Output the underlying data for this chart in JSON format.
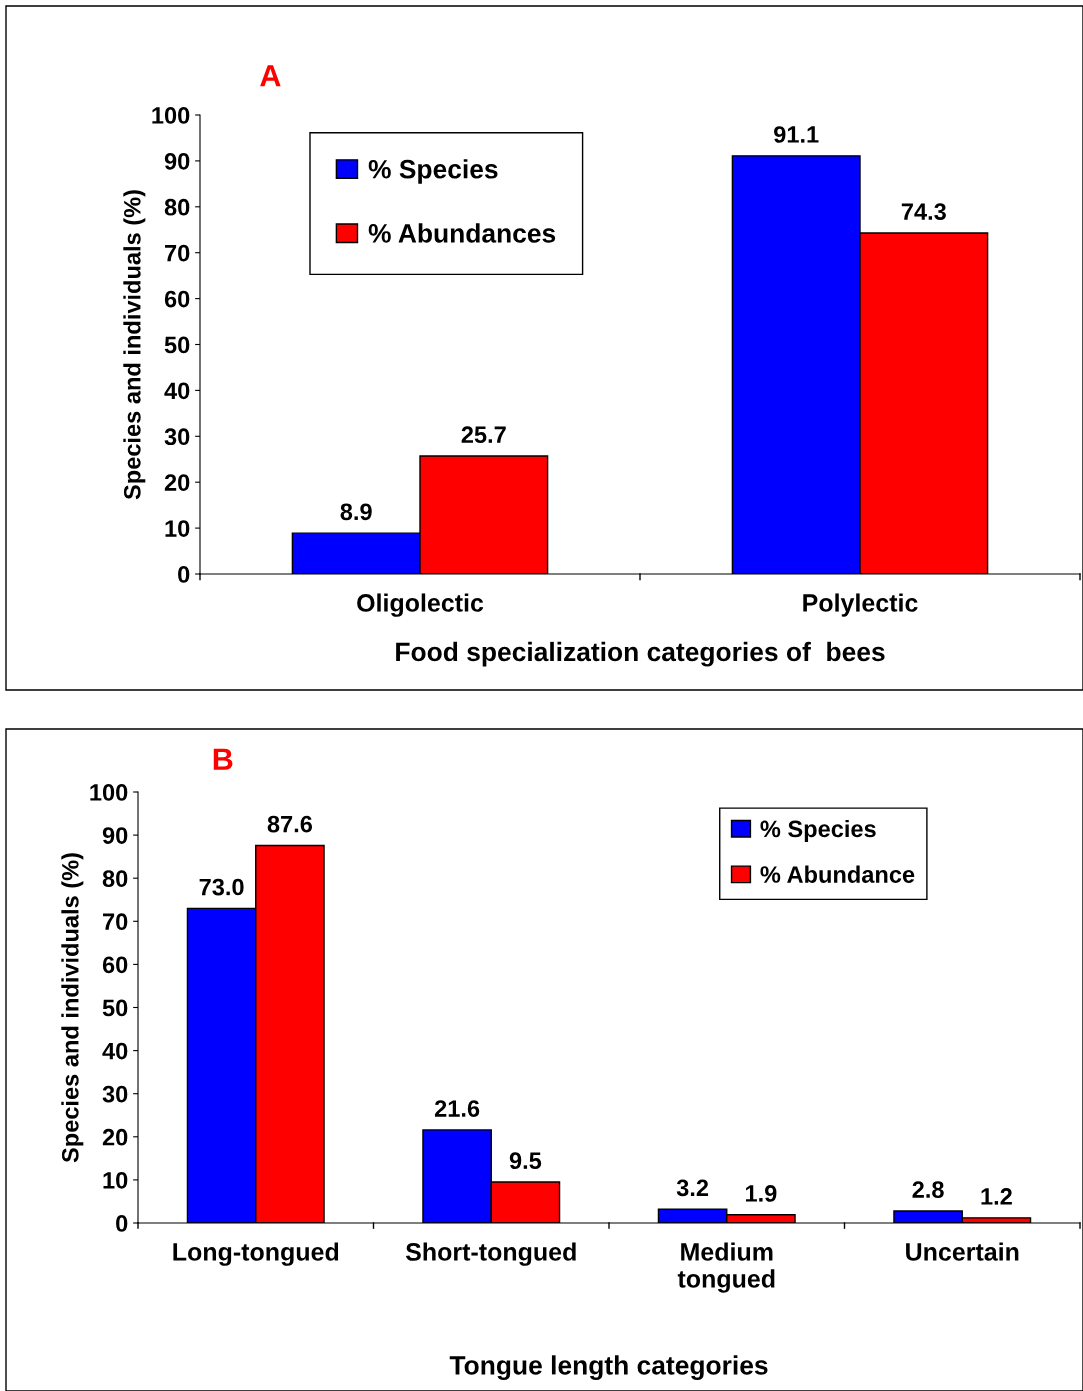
{
  "chart_data": [
    {
      "type": "bar",
      "title": "A",
      "xlabel": "Food specialization categories of  bees",
      "ylabel": "Species and individuals (%)",
      "categories": [
        "Oligolectic",
        "Polylectic"
      ],
      "series": [
        {
          "name": "% Species",
          "color": "#0000ff",
          "values": [
            8.9,
            91.1
          ]
        },
        {
          "name": "% Abundances",
          "color": "#ff0000",
          "values": [
            25.7,
            74.3
          ]
        }
      ],
      "ylim": [
        0,
        100
      ],
      "yticks": [
        0,
        10,
        20,
        30,
        40,
        50,
        60,
        70,
        80,
        90,
        100
      ],
      "data_labels": true,
      "legend": "top left",
      "grid": false
    },
    {
      "type": "bar",
      "title": "B",
      "xlabel": "Tongue length categories",
      "ylabel": "Species and individuals (%)",
      "categories": [
        "Long-tongued",
        "Short-tongued",
        "Medium\ntongued",
        "Uncertain"
      ],
      "series": [
        {
          "name": "% Species",
          "color": "#0000ff",
          "values": [
            73.0,
            21.6,
            3.2,
            2.8
          ],
          "value_labels": [
            "73.0",
            "21.6",
            "3.2",
            "2.8"
          ]
        },
        {
          "name": "% Abundance",
          "color": "#ff0000",
          "values": [
            87.6,
            9.5,
            1.9,
            1.2
          ],
          "value_labels": [
            "87.6",
            "9.5",
            "1.9",
            "1.2"
          ]
        }
      ],
      "ylim": [
        0,
        100
      ],
      "yticks": [
        0,
        10,
        20,
        30,
        40,
        50,
        60,
        70,
        80,
        90,
        100
      ],
      "legend": "top right",
      "grid": false
    }
  ]
}
